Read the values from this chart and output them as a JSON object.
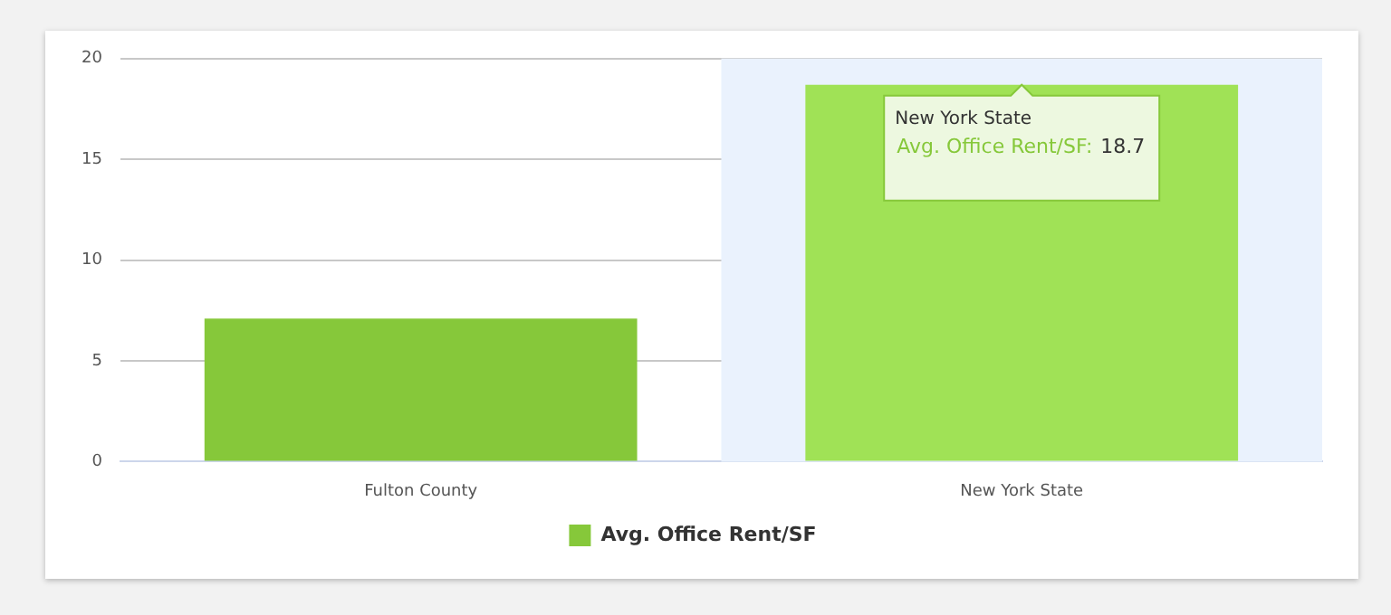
{
  "chart_data": {
    "type": "bar",
    "categories": [
      "Fulton County",
      "New York State"
    ],
    "series": [
      {
        "name": "Avg. Office Rent/SF",
        "color": "#86c83a",
        "colors": [
          "#86c83a",
          "#a0e256"
        ],
        "values": [
          7.1,
          18.7
        ],
        "value_labels": [
          null,
          "18.7"
        ]
      }
    ],
    "ylim": [
      0,
      20
    ],
    "yticks": [
      0,
      5,
      10,
      15,
      20
    ],
    "grid": "y",
    "legend": "bottom",
    "bands": [
      {
        "axis": "x",
        "from": "New York State",
        "to": "New York State",
        "color": "#eaf2fd"
      }
    ],
    "annotations": [
      "New York State",
      "Avg. Office Rent/SF:"
    ]
  }
}
